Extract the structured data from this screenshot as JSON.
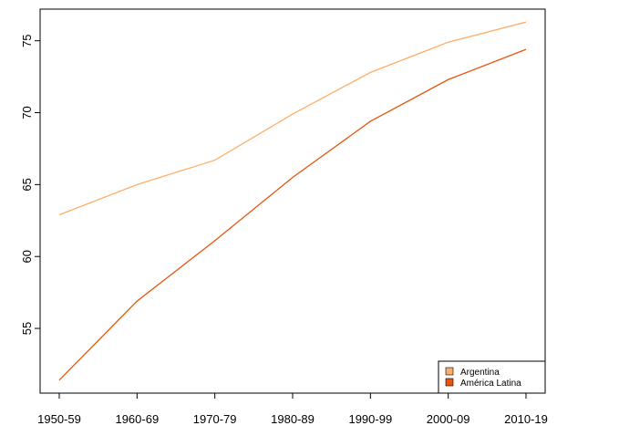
{
  "chart_data": {
    "type": "line",
    "categories": [
      "1950-59",
      "1960-69",
      "1970-79",
      "1980-89",
      "1990-99",
      "2000-09",
      "2010-19"
    ],
    "series": [
      {
        "name": "Argentina",
        "color": "#fdae6b",
        "values": [
          62.9,
          65.0,
          66.7,
          69.9,
          72.8,
          74.9,
          76.3
        ]
      },
      {
        "name": "América Latina",
        "color": "#e6550d",
        "values": [
          51.4,
          56.9,
          61.1,
          65.5,
          69.4,
          72.3,
          74.4
        ]
      }
    ],
    "ylim": [
      50.5,
      77.2
    ],
    "yticks": [
      55,
      60,
      65,
      70,
      75
    ],
    "legend": "bottom-right"
  }
}
